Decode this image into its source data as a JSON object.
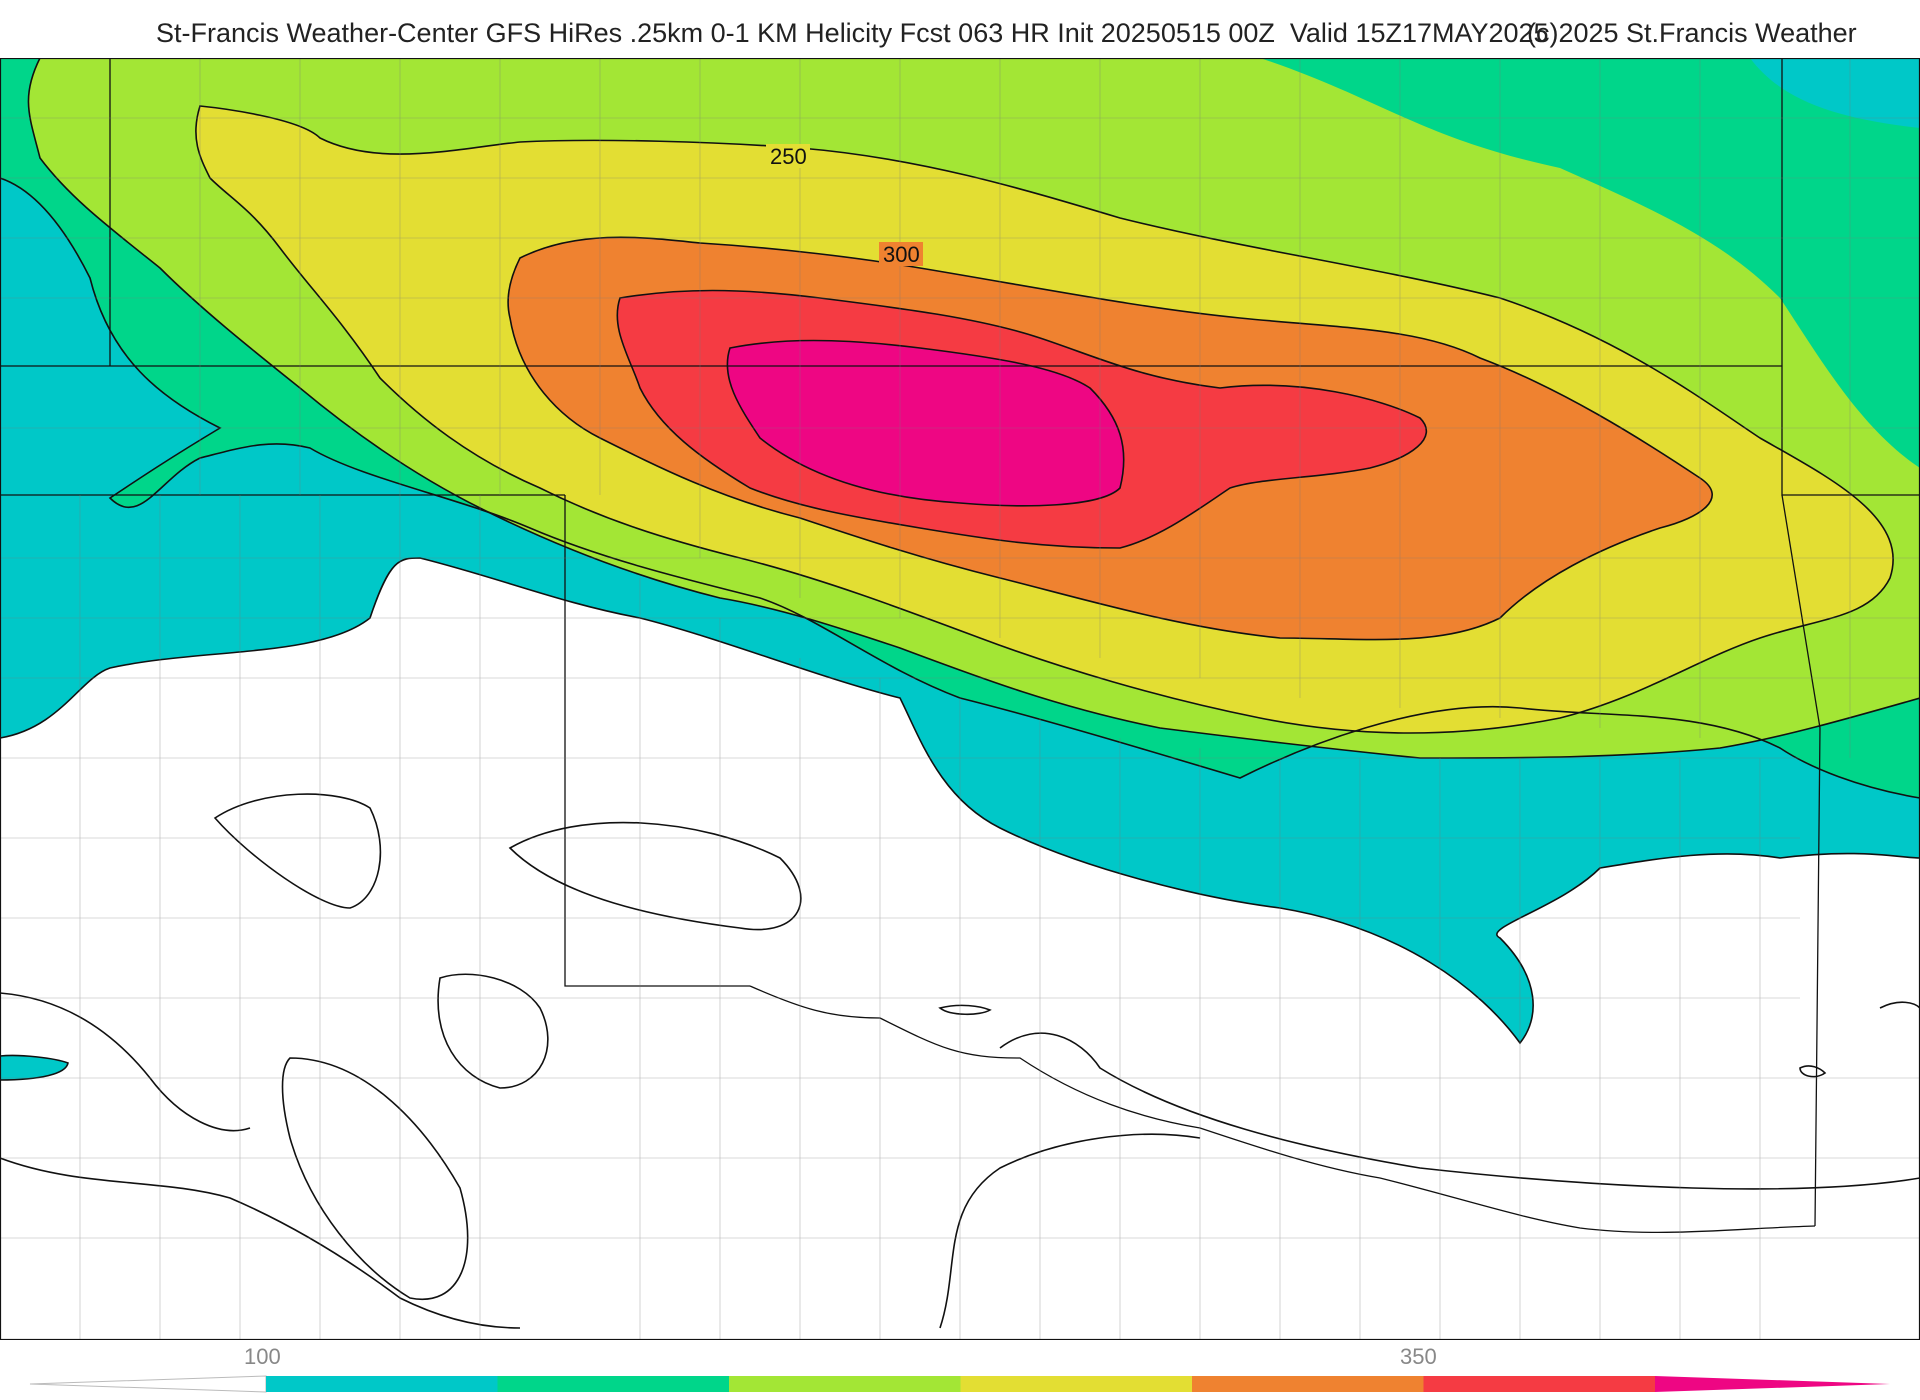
{
  "header": {
    "title": "St-Francis Weather-Center GFS HiRes .25km 0-1 KM Helicity Fcst 063 HR Init 20250515 00Z  Valid 15Z17MAY2025",
    "copyright": "(c)2025 St.Francis Weather"
  },
  "map": {
    "contour_labels": [
      "250",
      "300"
    ]
  },
  "colorbar": {
    "tick_labels": [
      "100",
      "350"
    ],
    "colors": [
      "#00c8c8",
      "#00d68a",
      "#a3e635",
      "#e3de33",
      "#ef8230",
      "#f53b43",
      "#ee0683"
    ]
  }
}
